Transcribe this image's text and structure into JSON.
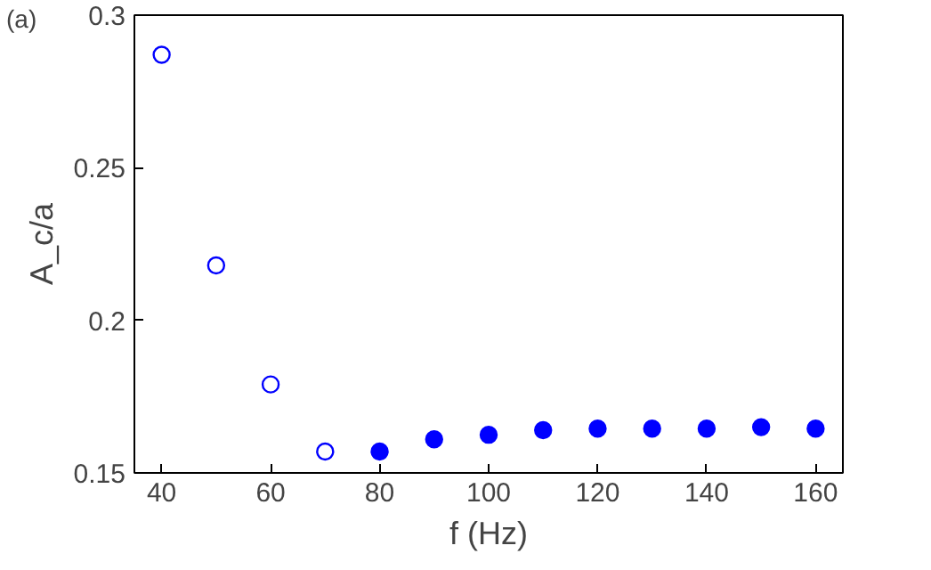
{
  "chart_data": {
    "type": "scatter",
    "xlabel": "f (Hz)",
    "ylabel": "A_c/a",
    "annotations": [
      "(a)"
    ],
    "xlim": [
      35,
      165
    ],
    "ylim": [
      0.15,
      0.3
    ],
    "xticks": [
      40,
      60,
      80,
      100,
      120,
      140,
      160
    ],
    "yticks": [
      0.15,
      0.2,
      0.25,
      0.3
    ],
    "grid": false,
    "series": [
      {
        "color": "#0000ff",
        "marker": "circle_open",
        "x": [
          40,
          50,
          60,
          70
        ],
        "values": [
          0.287,
          0.218,
          0.179,
          0.157
        ]
      },
      {
        "color": "#0000ff",
        "marker": "circle",
        "x": [
          80,
          90,
          100,
          110,
          120,
          130,
          140,
          150,
          160
        ],
        "values": [
          0.157,
          0.161,
          0.1625,
          0.164,
          0.1645,
          0.1645,
          0.1645,
          0.165,
          0.1645
        ]
      }
    ]
  }
}
